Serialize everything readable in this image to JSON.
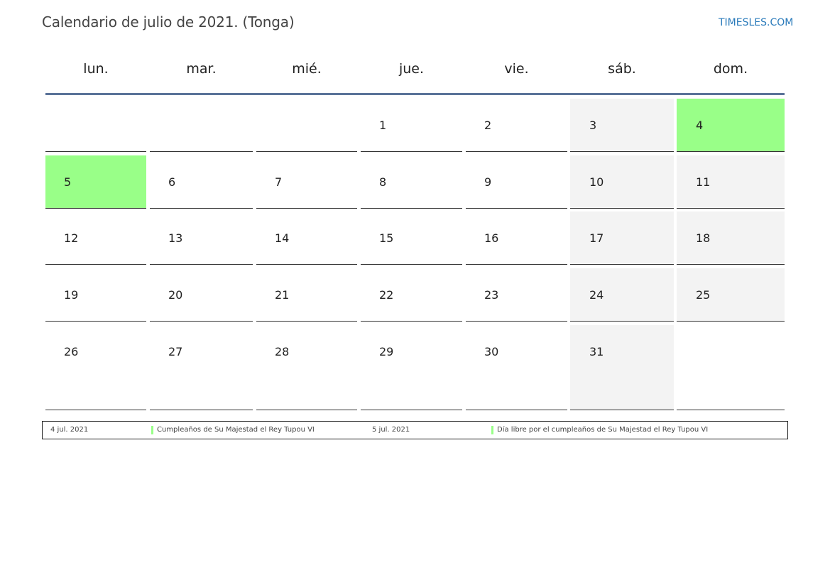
{
  "header": {
    "title": "Calendario de julio de 2021. (Tonga)",
    "site": "TIMESLES.COM"
  },
  "weekdays": [
    "lun.",
    "mar.",
    "mié.",
    "jue.",
    "vie.",
    "sáb.",
    "dom."
  ],
  "colors": {
    "accent_rule": "#5a7399",
    "weekend_bg": "#f3f3f3",
    "holiday_bg": "#99ff88",
    "link": "#2b7bbb"
  },
  "weeks": [
    [
      "",
      "",
      "",
      "1",
      "2",
      "3",
      "4"
    ],
    [
      "5",
      "6",
      "7",
      "8",
      "9",
      "10",
      "11"
    ],
    [
      "12",
      "13",
      "14",
      "15",
      "16",
      "17",
      "18"
    ],
    [
      "19",
      "20",
      "21",
      "22",
      "23",
      "24",
      "25"
    ],
    [
      "26",
      "27",
      "28",
      "29",
      "30",
      "31",
      ""
    ]
  ],
  "holiday_days": [
    "4",
    "5"
  ],
  "legend": [
    {
      "date": "4 jul. 2021",
      "name": "Cumpleaños de Su Majestad el Rey Tupou VI"
    },
    {
      "date": "5 jul. 2021",
      "name": "Día libre por el cumpleaños de Su Majestad el Rey Tupou VI"
    }
  ]
}
